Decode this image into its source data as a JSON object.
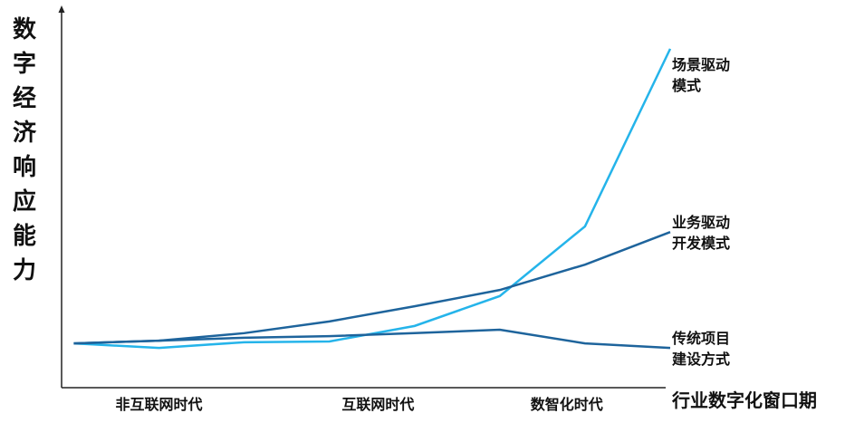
{
  "chart_data": {
    "type": "line",
    "y_label": "数字经济响应能力",
    "x_label": "行业数字化窗口期",
    "x": [
      2,
      16,
      30,
      44,
      58,
      72,
      86,
      100
    ],
    "xlim": [
      0,
      100
    ],
    "ylim": [
      0,
      100
    ],
    "xticks": [
      {
        "value": 16,
        "label": "非互联网时代"
      },
      {
        "value": 52,
        "label": "互联网时代"
      },
      {
        "value": 83,
        "label": "数智化时代"
      }
    ],
    "series": [
      {
        "name": "场景驱动模式",
        "color": "#25b4ea",
        "values": [
          11.7,
          10.5,
          12.0,
          12.2,
          16.3,
          24.2,
          42.6,
          89.5
        ]
      },
      {
        "name": "业务驱动开发模式",
        "color": "#1e649c",
        "values": [
          11.7,
          12.4,
          14.4,
          17.5,
          21.5,
          25.8,
          32.5,
          41.1
        ]
      },
      {
        "name": "传统项目建设方式",
        "color": "#1e649c",
        "values": [
          11.7,
          12.4,
          13.2,
          13.6,
          14.4,
          15.3,
          11.7,
          10.5
        ]
      }
    ]
  }
}
